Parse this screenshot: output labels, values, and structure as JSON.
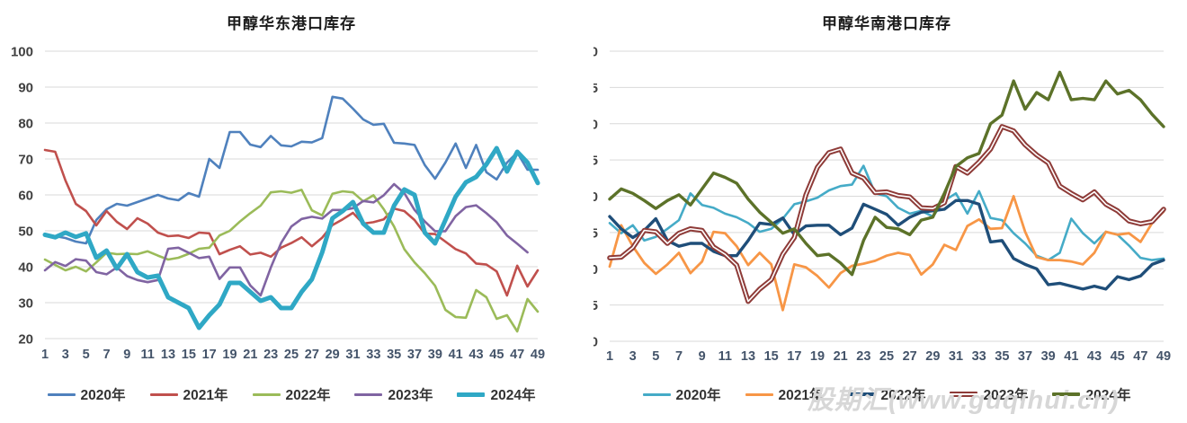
{
  "watermark": "股期汇(www.guqihui.cn)",
  "chart_data": [
    {
      "type": "line",
      "title": "甲醇华东港口库存",
      "ylim": [
        20,
        100
      ],
      "y_step": 10,
      "x_tick_labels": [
        1,
        3,
        5,
        7,
        9,
        11,
        13,
        15,
        17,
        19,
        21,
        23,
        25,
        27,
        29,
        31,
        33,
        35,
        37,
        39,
        41,
        43,
        45,
        47,
        49
      ],
      "x_weeks": 49,
      "grid": "horizontal",
      "legend_position": "bottom",
      "series": [
        {
          "name": "2020年",
          "color": "#4F81BD",
          "width": 2.6,
          "values": [
            49,
            48.5,
            48,
            47,
            46.5,
            53,
            56,
            57.5,
            57,
            58,
            59,
            60,
            59,
            58.5,
            60.5,
            59.5,
            70,
            67.5,
            77.5,
            77.5,
            74,
            73.3,
            76.4,
            73.8,
            73.5,
            74.8,
            74.6,
            75.8,
            87.3,
            86.8,
            84,
            81,
            79.5,
            79.8,
            74.5,
            74.3,
            73.9,
            68.3,
            64.5,
            69,
            74.3,
            67.5,
            73.9,
            66.3,
            64.3,
            69,
            71.8,
            67,
            67
          ]
        },
        {
          "name": "2021年",
          "color": "#C0504D",
          "width": 2.6,
          "values": [
            72.5,
            72,
            64,
            57.5,
            55.5,
            51.5,
            55.5,
            52.5,
            50.5,
            53.5,
            52,
            49.5,
            48.5,
            48.7,
            48,
            49.5,
            49.3,
            43.5,
            44.7,
            45.7,
            43.4,
            43.9,
            42.8,
            45.3,
            46.6,
            48.2,
            45.7,
            48.1,
            51.6,
            53.2,
            55,
            52,
            52.4,
            53.2,
            56.2,
            55.5,
            53,
            49.2,
            49.1,
            47,
            44.9,
            43.7,
            40.9,
            40.6,
            38.7,
            32,
            40.3,
            34.5,
            39
          ]
        },
        {
          "name": "2022年",
          "color": "#9BBB59",
          "width": 2.6,
          "values": [
            42,
            40.5,
            39,
            40,
            38.7,
            41.2,
            43.9,
            43.5,
            43.6,
            43.5,
            44.3,
            43.1,
            42,
            42.5,
            43.6,
            45,
            45.3,
            48.7,
            50,
            52.6,
            54.9,
            57,
            60.7,
            61,
            60.6,
            61.4,
            55.7,
            54.3,
            60.3,
            61,
            60.7,
            58.2,
            59.9,
            56,
            51.2,
            44.9,
            41.2,
            38.2,
            34.7,
            28,
            26,
            25.8,
            33.5,
            31.5,
            25.5,
            26.5,
            22,
            31,
            27.5
          ]
        },
        {
          "name": "2023年",
          "color": "#8064A2",
          "width": 2.6,
          "values": [
            39,
            41.3,
            40.2,
            42.1,
            41.7,
            38.5,
            37.9,
            39.8,
            37.4,
            36.3,
            35.7,
            36.3,
            45,
            45.3,
            43.9,
            42.4,
            42.8,
            36.6,
            39.8,
            39.8,
            34.8,
            32,
            39.8,
            46.6,
            51.2,
            53.3,
            53.9,
            53.4,
            55.8,
            55.8,
            56.3,
            58.3,
            57.9,
            59.9,
            63,
            60.5,
            55.8,
            52.6,
            49.9,
            49.9,
            54.1,
            56.6,
            57.1,
            54.9,
            52.4,
            48.7,
            46.4,
            44,
            null
          ]
        },
        {
          "name": "2024年",
          "color": "#2FA8C5",
          "width": 5,
          "values": [
            48.9,
            48.2,
            49.5,
            48.3,
            49.3,
            42.5,
            44.5,
            39.5,
            43.5,
            38.5,
            37,
            37.5,
            31.5,
            30,
            28.5,
            23,
            26.5,
            29.5,
            35.5,
            35.5,
            33,
            30.5,
            31.5,
            28.5,
            28.5,
            33,
            36.5,
            44,
            53.5,
            55.5,
            58,
            52,
            49.5,
            49.5,
            57,
            61.5,
            60,
            49.5,
            46.5,
            53,
            59.5,
            63.5,
            65,
            68.5,
            73,
            66.5,
            72,
            69,
            63.3
          ]
        }
      ]
    },
    {
      "type": "line",
      "title": "甲醇华南港口库存",
      "ylim": [
        0,
        40
      ],
      "y_step": 5,
      "x_tick_labels": [
        1,
        3,
        5,
        7,
        9,
        11,
        13,
        15,
        17,
        19,
        21,
        23,
        25,
        27,
        29,
        31,
        33,
        35,
        37,
        39,
        41,
        43,
        45,
        47,
        49
      ],
      "x_weeks": 49,
      "grid": "horizontal",
      "legend_position": "bottom",
      "series": [
        {
          "name": "2020年",
          "color": "#45ABC7",
          "width": 2.6,
          "values": [
            16.3,
            14.9,
            16,
            13.9,
            14.4,
            15.5,
            16.7,
            20.4,
            18.8,
            18.4,
            17.6,
            17.1,
            16.3,
            15.1,
            15.5,
            16.9,
            18.9,
            19.3,
            19.8,
            20.8,
            21.4,
            21.6,
            24.2,
            20.4,
            20,
            18.4,
            17.6,
            18,
            17.2,
            19.4,
            20.4,
            17.6,
            20.7,
            17,
            16.7,
            14.9,
            13.5,
            11.8,
            11.2,
            12.2,
            16.9,
            14.9,
            13.5,
            15.1,
            14.7,
            13.2,
            11.5,
            11.2,
            11.4
          ]
        },
        {
          "name": "2021年",
          "color": "#F79646",
          "width": 2.8,
          "values": [
            10.3,
            16,
            13.1,
            10.8,
            9.3,
            10.6,
            12.2,
            9.4,
            11,
            15.1,
            14.9,
            13.1,
            10.5,
            12.2,
            10.6,
            4.3,
            10.6,
            10.2,
            9,
            7.4,
            9.4,
            10.4,
            10.7,
            11.1,
            11.8,
            12.2,
            11.9,
            9.2,
            10.6,
            13.3,
            12.6,
            15.9,
            16.8,
            15.5,
            15.6,
            20,
            15.1,
            11.6,
            11.2,
            11.2,
            11,
            10.6,
            12.2,
            15.1,
            14.7,
            14.9,
            13.7,
            16.3,
            17.9
          ]
        },
        {
          "name": "2022年",
          "color": "#1F4E79",
          "width": 3.4,
          "values": [
            17.2,
            15.5,
            14.3,
            15.3,
            16.9,
            13.9,
            13.1,
            13.5,
            13.5,
            12.4,
            11.8,
            11.8,
            13.9,
            16.3,
            16.1,
            17,
            14.7,
            15.9,
            16,
            16,
            14.7,
            15.6,
            18.9,
            18.2,
            17.5,
            16,
            17.1,
            17.8,
            18,
            18.2,
            19.4,
            19.4,
            18.9,
            13.7,
            13.9,
            11.4,
            10.6,
            10,
            7.8,
            8,
            7.6,
            7.2,
            7.6,
            7.2,
            8.9,
            8.5,
            9,
            10.6,
            11.2
          ]
        },
        {
          "name": "2023年",
          "color": "#8E3B38",
          "width": 5.6,
          "halo": true,
          "halo_color": "#ffffff",
          "values": [
            11.5,
            11.6,
            12.9,
            15.3,
            15.1,
            13.5,
            14.9,
            15.5,
            15.3,
            13,
            12,
            10.5,
            5.5,
            7.2,
            8.5,
            12,
            14.3,
            20.2,
            24,
            26,
            26.5,
            23.2,
            22.5,
            20.5,
            20.6,
            20.1,
            19.9,
            18.4,
            18.3,
            19.1,
            24.1,
            23.2,
            24.7,
            26.5,
            29.6,
            29,
            27.1,
            25.7,
            24.6,
            21.4,
            20.4,
            19.5,
            20.6,
            18.9,
            18,
            16.6,
            16.2,
            16.5,
            18.2
          ]
        },
        {
          "name": "2024年",
          "color": "#5C7229",
          "width": 3.4,
          "values": [
            19.6,
            21,
            20.4,
            19.4,
            18.3,
            19.4,
            20.2,
            18.8,
            21,
            23.2,
            22.6,
            21.8,
            19.6,
            17.8,
            16.4,
            14.9,
            15.5,
            13.5,
            11.8,
            12,
            10.8,
            9.2,
            13.9,
            17.1,
            15.7,
            15.5,
            14.7,
            16.7,
            17.1,
            20.4,
            24.1,
            25.3,
            25.9,
            30,
            31.2,
            35.9,
            32,
            34.3,
            33.3,
            37.1,
            33.3,
            33.5,
            33.3,
            35.9,
            34.1,
            34.6,
            33.3,
            31.3,
            29.6
          ]
        }
      ]
    }
  ]
}
